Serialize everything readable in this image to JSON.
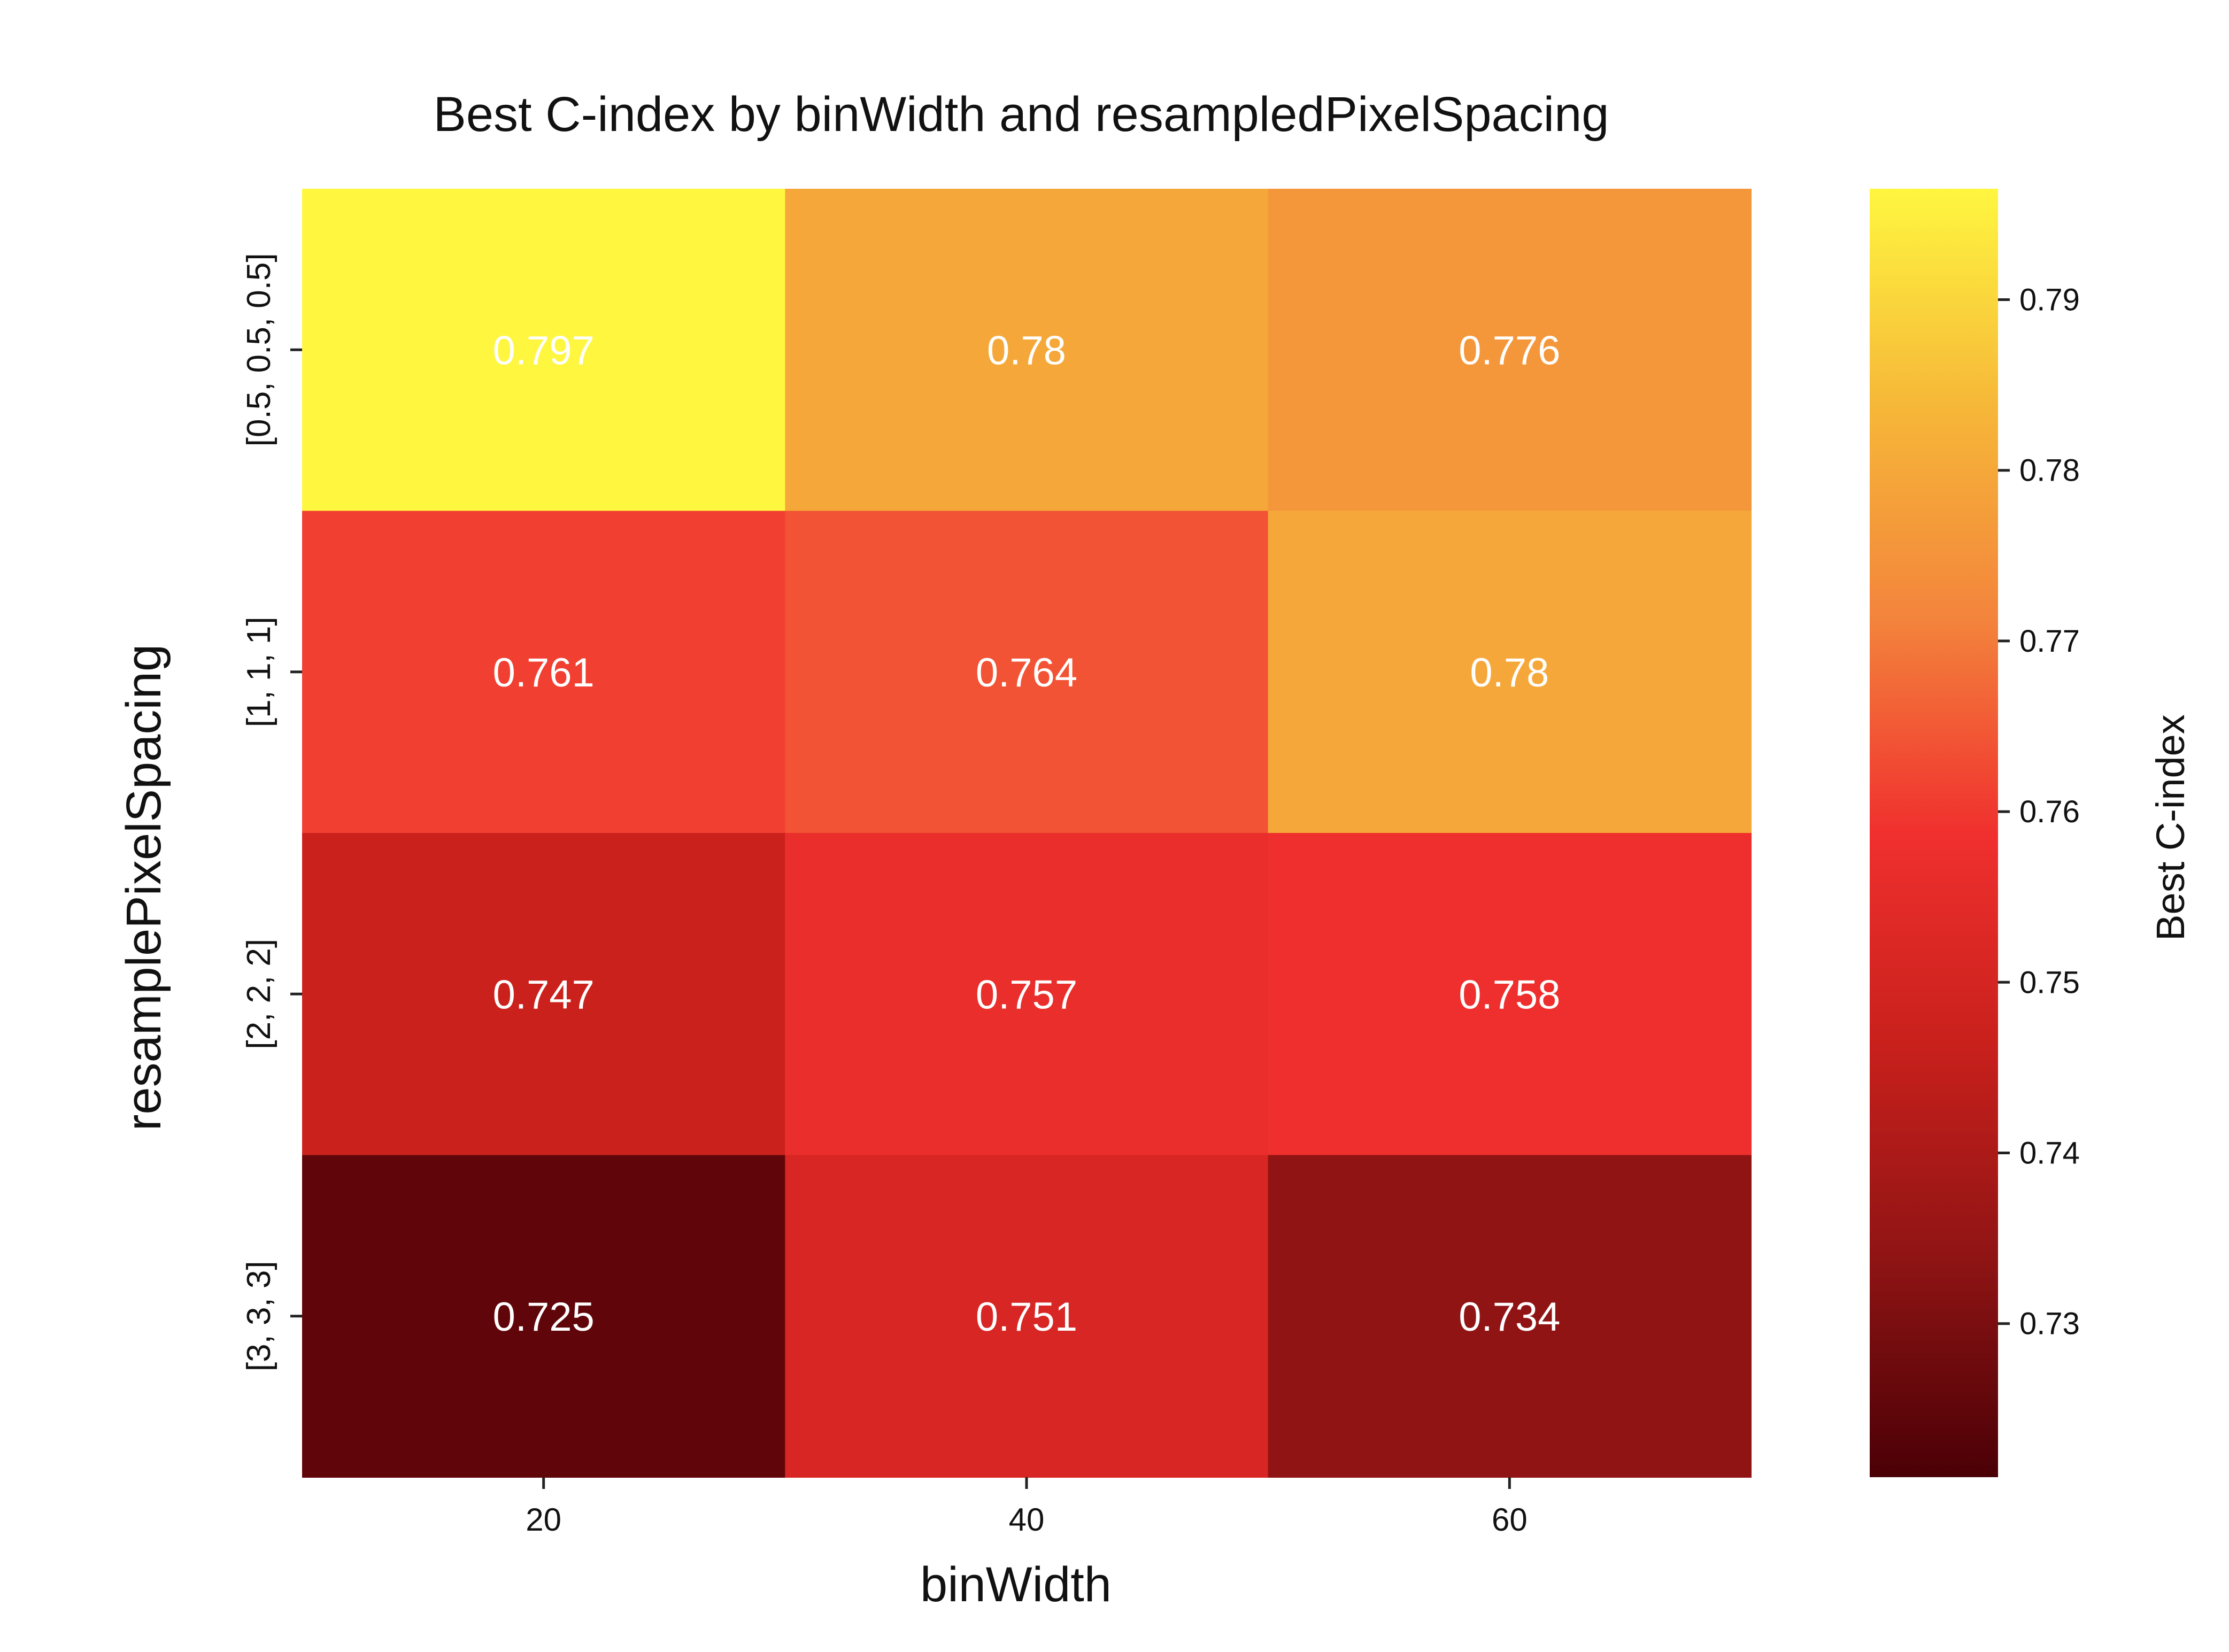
{
  "chart_data": {
    "type": "heatmap",
    "title": "Best C-index by binWidth and resampledPixelSpacing",
    "xlabel": "binWidth",
    "ylabel": "resamplePixelSpacing",
    "x_categories": [
      "20",
      "40",
      "60"
    ],
    "y_categories": [
      "[0.5, 0.5, 0.5]",
      "[1, 1, 1]",
      "[2, 2, 2]",
      "[3, 3, 3]"
    ],
    "values": [
      [
        0.797,
        0.78,
        0.776
      ],
      [
        0.761,
        0.764,
        0.78
      ],
      [
        0.747,
        0.757,
        0.758
      ],
      [
        0.725,
        0.751,
        0.734
      ]
    ],
    "value_labels": [
      [
        "0.797",
        "0.78",
        "0.776"
      ],
      [
        "0.761",
        "0.764",
        "0.78"
      ],
      [
        "0.747",
        "0.757",
        "0.758"
      ],
      [
        "0.725",
        "0.751",
        "0.734"
      ]
    ],
    "colorbar": {
      "label": "Best C-index",
      "range": [
        0.721,
        0.7965
      ],
      "ticks": [
        0.73,
        0.74,
        0.75,
        0.76,
        0.77,
        0.78,
        0.79
      ],
      "tick_labels": [
        "0.73",
        "0.74",
        "0.75",
        "0.76",
        "0.77",
        "0.78",
        "0.79"
      ],
      "colormap": [
        "#4a0006",
        "#8e1414",
        "#c8201c",
        "#f0302e",
        "#f3843c",
        "#f6b838",
        "#fff640"
      ]
    },
    "cell_text_color": "#ffffff"
  }
}
